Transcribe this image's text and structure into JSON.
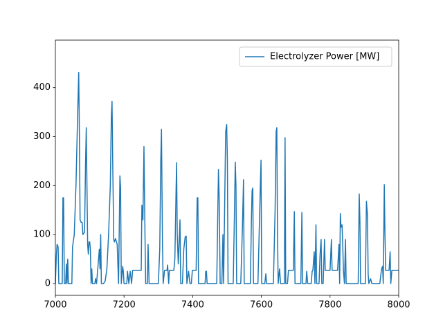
{
  "chart_data": {
    "type": "line",
    "x": [
      7000,
      7003,
      7005,
      7008,
      7010,
      7020,
      7022,
      7024,
      7026,
      7030,
      7032,
      7034,
      7036,
      7038,
      7048,
      7050,
      7055,
      7060,
      7065,
      7068,
      7070,
      7072,
      7075,
      7078,
      7080,
      7085,
      7088,
      7090,
      7092,
      7094,
      7096,
      7098,
      7100,
      7102,
      7104,
      7106,
      7108,
      7115,
      7117,
      7120,
      7128,
      7130,
      7132,
      7134,
      7140,
      7145,
      7150,
      7155,
      7160,
      7163,
      7165,
      7167,
      7170,
      7172,
      7175,
      7178,
      7180,
      7184,
      7188,
      7190,
      7192,
      7196,
      7198,
      7200,
      7208,
      7210,
      7214,
      7218,
      7222,
      7225,
      7250,
      7252,
      7255,
      7258,
      7261,
      7263,
      7268,
      7270,
      7273,
      7300,
      7304,
      7307,
      7309,
      7312,
      7314,
      7318,
      7325,
      7327,
      7330,
      7332,
      7345,
      7348,
      7353,
      7355,
      7358,
      7363,
      7365,
      7370,
      7374,
      7378,
      7381,
      7383,
      7388,
      7392,
      7396,
      7399,
      7410,
      7413,
      7415,
      7417,
      7436,
      7438,
      7440,
      7442,
      7470,
      7472,
      7475,
      7477,
      7480,
      7485,
      7488,
      7490,
      7496,
      7499,
      7501,
      7503,
      7518,
      7521,
      7524,
      7526,
      7528,
      7540,
      7545,
      7548,
      7550,
      7568,
      7571,
      7573,
      7575,
      7577,
      7590,
      7597,
      7599,
      7601,
      7610,
      7613,
      7615,
      7635,
      7640,
      7643,
      7645,
      7647,
      7649,
      7653,
      7656,
      7667,
      7669,
      7671,
      7676,
      7679,
      7693,
      7696,
      7698,
      7715,
      7718,
      7720,
      7730,
      7732,
      7735,
      7745,
      7748,
      7750,
      7754,
      7756,
      7759,
      7761,
      7768,
      7771,
      7774,
      7776,
      7780,
      7784,
      7786,
      7800,
      7804,
      7806,
      7822,
      7826,
      7828,
      7830,
      7832,
      7835,
      7837,
      7839,
      7842,
      7845,
      7847,
      7882,
      7885,
      7887,
      7889,
      7903,
      7906,
      7909,
      7911,
      7913,
      7918,
      7922,
      7945,
      7950,
      7953,
      7955,
      7958,
      7960,
      7962,
      7972,
      7975,
      7977,
      7980,
      8000
    ],
    "series": [
      {
        "name": "Electrolyzer Power [MW]",
        "color": "#1f77b4",
        "values": [
          0,
          60,
          80,
          75,
          0,
          0,
          175,
          175,
          0,
          0,
          40,
          0,
          50,
          0,
          0,
          75,
          100,
          200,
          350,
          431,
          300,
          130,
          125,
          125,
          100,
          105,
          250,
          318,
          200,
          80,
          60,
          85,
          85,
          70,
          0,
          30,
          0,
          0,
          10,
          0,
          70,
          30,
          100,
          0,
          0,
          5,
          30,
          100,
          200,
          340,
          372,
          250,
          90,
          85,
          92,
          85,
          80,
          0,
          220,
          195,
          0,
          35,
          25,
          0,
          0,
          25,
          0,
          25,
          0,
          27,
          27,
          160,
          130,
          280,
          100,
          0,
          0,
          80,
          0,
          0,
          70,
          250,
          315,
          80,
          0,
          27,
          27,
          38,
          0,
          27,
          27,
          50,
          247,
          100,
          40,
          130,
          0,
          0,
          70,
          95,
          97,
          0,
          25,
          0,
          0,
          27,
          27,
          175,
          175,
          0,
          0,
          25,
          25,
          0,
          0,
          95,
          233,
          180,
          0,
          0,
          100,
          0,
          310,
          325,
          250,
          0,
          0,
          120,
          248,
          200,
          0,
          0,
          120,
          212,
          0,
          0,
          130,
          190,
          195,
          0,
          0,
          200,
          252,
          0,
          0,
          20,
          0,
          0,
          150,
          310,
          318,
          100,
          0,
          30,
          0,
          0,
          298,
          0,
          0,
          27,
          27,
          147,
          0,
          0,
          145,
          0,
          0,
          25,
          0,
          0,
          25,
          27,
          65,
          0,
          120,
          0,
          0,
          60,
          90,
          0,
          0,
          90,
          27,
          27,
          90,
          27,
          27,
          80,
          0,
          143,
          115,
          120,
          80,
          27,
          0,
          90,
          0,
          0,
          183,
          130,
          0,
          0,
          168,
          140,
          20,
          0,
          10,
          0,
          0,
          30,
          35,
          0,
          202,
          100,
          27,
          27,
          65,
          0,
          27,
          27
        ]
      }
    ],
    "xlim": [
      7000,
      8000
    ],
    "ylim": [
      -24,
      497
    ],
    "xticks": [
      7000,
      7200,
      7400,
      7600,
      7800,
      8000
    ],
    "yticks": [
      0,
      100,
      200,
      300,
      400
    ],
    "legend": "upper right",
    "grid": false
  }
}
